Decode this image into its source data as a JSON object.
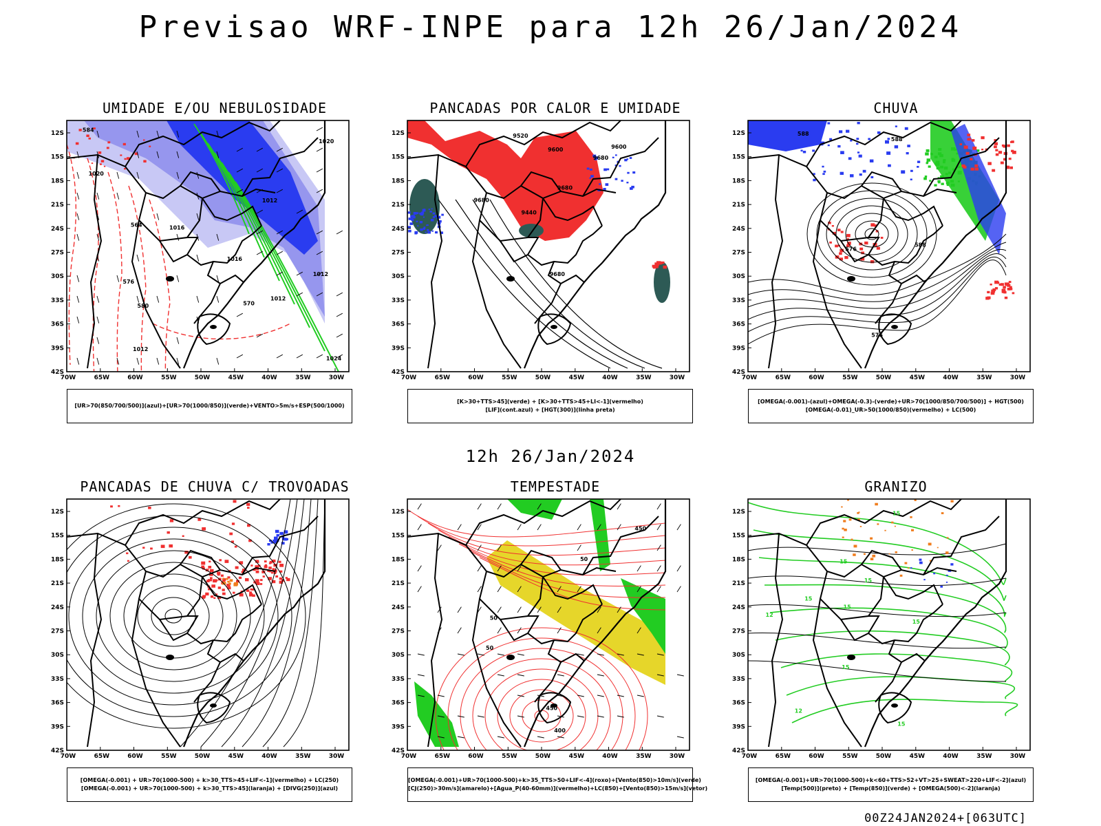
{
  "header": {
    "title": "Previsao WRF-INPE  para 12h 26/Jan/2024"
  },
  "mid": {
    "subtitle": "12h 26/Jan/2024"
  },
  "footer": {
    "run": "00Z24JAN2024+[063UTC]"
  },
  "axes": {
    "lat_labels": [
      "12S",
      "15S",
      "18S",
      "21S",
      "24S",
      "27S",
      "30S",
      "33S",
      "36S",
      "39S",
      "42S"
    ],
    "lon_labels": [
      "70W",
      "65W",
      "60W",
      "55W",
      "50W",
      "45W",
      "40W",
      "35W",
      "30W"
    ]
  },
  "colors": {
    "blue": "#2a3cf0",
    "green": "#22cc22",
    "red": "#f03030",
    "yellow": "#e6d62a",
    "orange": "#f07d1e",
    "teal": "#2d5a55",
    "purple": "#8c8cf0"
  },
  "panels": [
    {
      "title": "UMIDADE E/OU NEBULOSIDADE",
      "caption": [
        "[UR>70(850/700/500)](azul)+[UR>70(1000/850)](verde)+VENTO>5m/s+ESP(500/1000)"
      ],
      "labels": [
        "1012",
        "1012",
        "1012",
        "1016",
        "1016",
        "1020",
        "1024",
        "1020",
        "1012",
        "576",
        "570",
        "564",
        "580",
        "584"
      ]
    },
    {
      "title": "PANCADAS POR CALOR E UMIDADE",
      "caption": [
        "[K>30+TTS>45](verde) + [K>30+TTS>45+LI<-1](vermelho)",
        "[LIF](cont.azul) + [HGT(300)](linha preta)"
      ],
      "labels": [
        "9680",
        "9680",
        "9600",
        "9520",
        "9440",
        "9600",
        "9680",
        "9680"
      ]
    },
    {
      "title": "CHUVA",
      "caption": [
        "[OMEGA(-0.001)-(azul)+OMEGA(-0.3)-(verde)+UR>70(1000/850/700/500)] + HGT(500)",
        "[OMEGA(-0.01)_UR>50(1000/850)(vermelho) + LC(500)"
      ],
      "labels": [
        "576",
        "576",
        "588",
        "588",
        "588"
      ]
    },
    {
      "title": "PANCADAS DE CHUVA C/ TROVOADAS",
      "caption": [
        "[OMEGA(-0.001) + UR>70(1000-500) + k>30_TTS>45+LIF<-1](vermelho) + LC(250)",
        "[OMEGA(-0.001) + UR>70(1000-500) + k>30_TTS>45](laranja) + [DIVG(250)](azul)"
      ],
      "labels": []
    },
    {
      "title": "TEMPESTADE",
      "caption": [
        "[OMEGA(-0.001)+UR>70(1000-500)+k>35_TTS>50+LIF<-4](roxo)+[Vento(850)>10m/s](verde)",
        "[CJ(250)>30m/s](amarelo)+[Agua_P(40-60mm)](vermelho)+LC(850)+[Vento(850)>15m/s](vetor)"
      ],
      "labels": [
        "450",
        "50",
        "50",
        "400",
        "450",
        "50"
      ]
    },
    {
      "title": "GRANIZO",
      "caption": [
        "[OMEGA(-0.001)+UR>70(1000-500)+k<60+TTS>52+VT>25+SWEAT>220+LIF<-2](azul)",
        "[Temp(500)](preto) + [Temp(850)](verde) + [OMEGA(500)<-2](laranja)"
      ],
      "labels": [
        "15",
        "15",
        "15",
        "15",
        "15",
        "12",
        "12",
        "15",
        "15",
        "15"
      ]
    }
  ]
}
